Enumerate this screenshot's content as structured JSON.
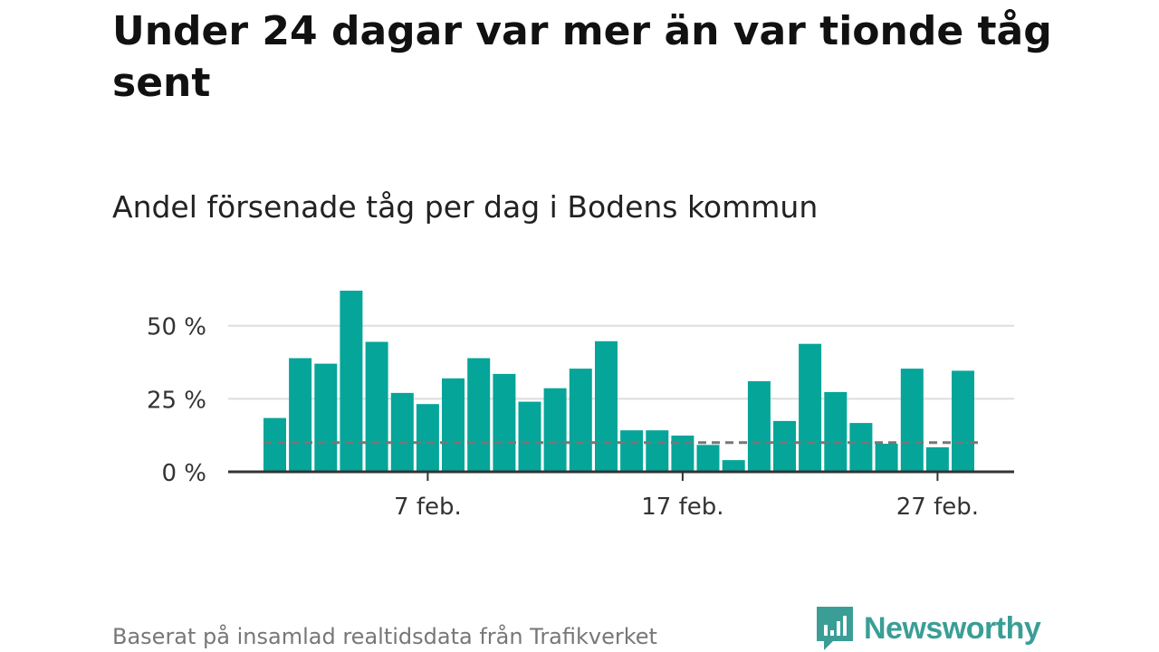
{
  "title": "Under 24 dagar var mer än var tionde tåg sent",
  "subtitle": "Andel försenade tåg per dag i Bodens kommun",
  "source": "Baserat på insamlad realtidsdata från Trafikverket",
  "brand": {
    "name": "Newsworthy",
    "icon": "newsworthy-logo-icon",
    "color": "#3a9e96"
  },
  "colors": {
    "bar": "#06a599",
    "grid": "#dddddd",
    "axis": "#333333",
    "reference": "#777777"
  },
  "chart_data": {
    "type": "bar",
    "categories": [
      "1 feb.",
      "2 feb.",
      "3 feb.",
      "4 feb.",
      "5 feb.",
      "6 feb.",
      "7 feb.",
      "8 feb.",
      "9 feb.",
      "10 feb.",
      "11 feb.",
      "12 feb.",
      "13 feb.",
      "14 feb.",
      "15 feb.",
      "16 feb.",
      "17 feb.",
      "18 feb.",
      "19 feb.",
      "20 feb.",
      "21 feb.",
      "22 feb.",
      "23 feb.",
      "24 feb.",
      "25 feb.",
      "26 feb.",
      "27 feb.",
      "28 feb."
    ],
    "values": [
      18.4,
      38.9,
      37,
      62,
      44.5,
      27,
      23.2,
      32,
      38.9,
      33.5,
      24,
      28.6,
      35.3,
      44.7,
      14.2,
      14.2,
      12.4,
      9.2,
      4,
      31,
      17.4,
      43.8,
      27.3,
      16.7,
      9.6,
      35.3,
      8.4,
      34.6
    ],
    "reference_line": 10,
    "yticks": [
      0,
      25,
      50
    ],
    "ytick_labels": [
      "0 %",
      "25 %",
      "50 %"
    ],
    "xtick_categories": [
      "7 feb.",
      "17 feb.",
      "27 feb."
    ],
    "xtick_labels": [
      "7 feb.",
      "17 feb.",
      "27 feb."
    ],
    "ylim": [
      0,
      62
    ],
    "xlabel": "",
    "ylabel": "",
    "grid": true,
    "legend": "none"
  }
}
